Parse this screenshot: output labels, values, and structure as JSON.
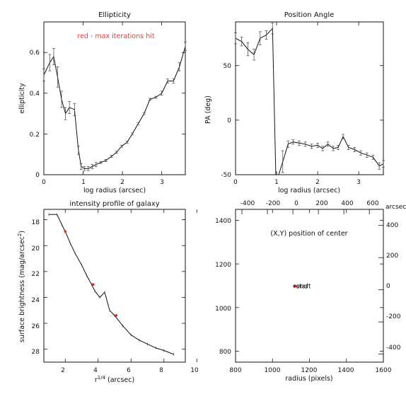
{
  "chart_data": [
    {
      "type": "line",
      "title": "Ellipticity",
      "xlabel": "log radius (arcsec)",
      "ylabel": "ellipticity",
      "xlim": [
        0,
        3.6
      ],
      "ylim": [
        0,
        0.75
      ],
      "xticks": [
        "0",
        "1",
        "2",
        "3"
      ],
      "yticks": [
        "0",
        "0.2",
        "0.4",
        "0.6"
      ],
      "annotation": "red - max iterations hit",
      "annotation_color": "#ff3333",
      "grid": false,
      "x": [
        0,
        0.15,
        0.25,
        0.35,
        0.45,
        0.55,
        0.65,
        0.78,
        0.88,
        0.95,
        1.03,
        1.13,
        1.23,
        1.33,
        1.45,
        1.58,
        1.72,
        1.85,
        1.98,
        2.12,
        2.25,
        2.4,
        2.55,
        2.7,
        2.85,
        3.0,
        3.15,
        3.3,
        3.45,
        3.6
      ],
      "y": [
        0.49,
        0.55,
        0.58,
        0.48,
        0.37,
        0.3,
        0.33,
        0.32,
        0.12,
        0.04,
        0.03,
        0.03,
        0.04,
        0.05,
        0.06,
        0.07,
        0.09,
        0.11,
        0.14,
        0.16,
        0.2,
        0.25,
        0.3,
        0.37,
        0.38,
        0.4,
        0.46,
        0.46,
        0.53,
        0.63
      ],
      "yerr": [
        0.03,
        0.04,
        0.04,
        0.05,
        0.04,
        0.03,
        0.03,
        0.03,
        0.02,
        0.015,
        0.01,
        0.01,
        0.01,
        0.01,
        0.005,
        0.005,
        0.005,
        0.005,
        0.005,
        0.005,
        0.005,
        0.005,
        0.005,
        0.005,
        0.005,
        0.01,
        0.01,
        0.01,
        0.02,
        0.02
      ]
    },
    {
      "type": "line",
      "title": "Position Angle",
      "xlabel": "log radius (arcsec)",
      "ylabel": "PA (deg)",
      "xlim": [
        0,
        3.6
      ],
      "ylim": [
        -50,
        90
      ],
      "xticks": [
        "0",
        "1",
        "2",
        "3"
      ],
      "yticks": [
        "-50",
        "0",
        "50"
      ],
      "grid": false,
      "x": [
        0,
        0.15,
        0.3,
        0.45,
        0.6,
        0.75,
        0.9,
        0.98,
        1.05,
        1.15,
        1.28,
        1.4,
        1.55,
        1.7,
        1.85,
        2.0,
        2.12,
        2.25,
        2.38,
        2.5,
        2.62,
        2.75,
        2.9,
        3.05,
        3.2,
        3.35,
        3.5,
        3.6
      ],
      "y": [
        75,
        72,
        65,
        60,
        75,
        78,
        84,
        -52,
        -52,
        -38,
        -22,
        -20,
        -21,
        -22,
        -24,
        -23,
        -26,
        -22,
        -26,
        -25,
        -15,
        -25,
        -27,
        -30,
        -32,
        -34,
        -42,
        -40
      ],
      "yerr": [
        5,
        4,
        6,
        5,
        6,
        4,
        5,
        0,
        0,
        10,
        3,
        2,
        2,
        2,
        2,
        2,
        2,
        2,
        2,
        2,
        2,
        2,
        2,
        2,
        2,
        2,
        3,
        3
      ]
    },
    {
      "type": "line",
      "title": "intensity profile of galaxy",
      "xlabel": "r",
      "xlabel_sup": "1/4",
      "xlabel_unit": "(arcsec)",
      "ylabel": "surface brightness (mag/arcsec",
      "ylabel_sup": "2",
      "ylabel_close": ")",
      "xlim": [
        0.7,
        9.3
      ],
      "ylim": [
        29,
        17.2
      ],
      "y_inverted": true,
      "xticks": [
        "2",
        "4",
        "6",
        "8",
        "10"
      ],
      "yticks": [
        "18",
        "20",
        "22",
        "24",
        "26",
        "28"
      ],
      "grid": false,
      "x": [
        1.0,
        1.5,
        1.8,
        2.0,
        2.3,
        2.6,
        3.0,
        3.3,
        3.6,
        3.8,
        4.1,
        4.4,
        4.7,
        5.0,
        5.5,
        6.0,
        6.5,
        7.0,
        7.5,
        8.0,
        8.6
      ],
      "y": [
        17.6,
        17.6,
        18.4,
        18.9,
        19.8,
        20.6,
        21.5,
        22.3,
        23.0,
        23.5,
        24.0,
        23.6,
        25.0,
        25.4,
        26.2,
        26.9,
        27.3,
        27.6,
        27.9,
        28.1,
        28.4
      ],
      "flagged_points": [
        {
          "x": 2.0,
          "y": 18.9
        },
        {
          "x": 3.7,
          "y": 23.0
        },
        {
          "x": 5.1,
          "y": 25.4
        }
      ],
      "flag_color": "#ee2222"
    },
    {
      "type": "scatter",
      "title": "(X,Y) position of center",
      "xlabel": "radius (pixels)",
      "xlabel_top": "",
      "ylabel_right": "arcsec",
      "xlim": [
        800,
        1600
      ],
      "ylim": [
        750,
        1450
      ],
      "xlim_top": [
        -450,
        710
      ],
      "ylim_right": [
        -450,
        500
      ],
      "xticks": [
        "800",
        "1000",
        "1200",
        "1400",
        "1600"
      ],
      "yticks": [
        "800",
        "1000",
        "1200",
        "1400"
      ],
      "xticks_top": [
        "-400",
        "-200",
        "0",
        "200",
        "400",
        "600"
      ],
      "yticks_right": [
        "-400",
        "-200",
        "0",
        "200",
        "400"
      ],
      "grid": false,
      "points": [
        {
          "x": 1120,
          "y": 1098
        }
      ],
      "point_label": "start",
      "point_label_2": "end",
      "point_color": "#aa1111"
    }
  ]
}
